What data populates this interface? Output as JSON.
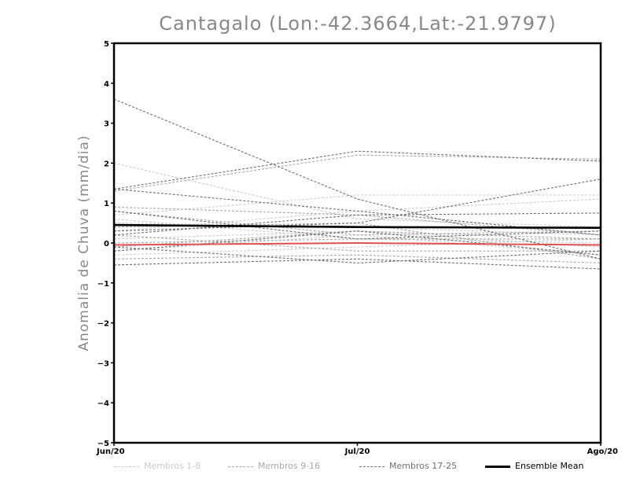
{
  "chart_data": {
    "type": "line",
    "title": "Cantagalo (Lon:-42.3664,Lat:-21.9797)",
    "xlabel": "",
    "ylabel": "Anomalia de Chuva (mm/dia)",
    "categories": [
      "Jun/20",
      "Jul/20",
      "Ago/20"
    ],
    "ylim": [
      -5,
      5
    ],
    "yticks": [
      -5,
      -4,
      -3,
      -2,
      -1,
      0,
      1,
      2,
      3,
      4,
      5
    ],
    "grid": false,
    "legend_position": "bottom",
    "legend": [
      {
        "label": "Membros 1-8",
        "color": "#cccccc",
        "style": "dashed"
      },
      {
        "label": "Membros 9-16",
        "color": "#a8a8a8",
        "style": "dashed"
      },
      {
        "label": "Membros 17-25",
        "color": "#707070",
        "style": "dashed"
      },
      {
        "label": "Ensemble Mean",
        "color": "#000000",
        "style": "solid"
      }
    ],
    "series": [
      {
        "group": 1,
        "values": [
          2.0,
          0.6,
          0.4
        ]
      },
      {
        "group": 1,
        "values": [
          0.7,
          1.2,
          1.2
        ]
      },
      {
        "group": 1,
        "values": [
          0.3,
          0.8,
          1.1
        ]
      },
      {
        "group": 1,
        "values": [
          0.1,
          0.3,
          -0.1
        ]
      },
      {
        "group": 1,
        "values": [
          -0.3,
          -0.1,
          0.1
        ]
      },
      {
        "group": 1,
        "values": [
          0.5,
          0.4,
          0.2
        ]
      },
      {
        "group": 1,
        "values": [
          -0.2,
          0.2,
          -0.3
        ]
      },
      {
        "group": 1,
        "values": [
          0.6,
          0.1,
          0.0
        ]
      },
      {
        "group": 2,
        "values": [
          1.3,
          2.2,
          2.1
        ]
      },
      {
        "group": 2,
        "values": [
          0.9,
          0.7,
          0.2
        ]
      },
      {
        "group": 2,
        "values": [
          0.4,
          0.5,
          -0.4
        ]
      },
      {
        "group": 2,
        "values": [
          -0.1,
          0.3,
          0.1
        ]
      },
      {
        "group": 2,
        "values": [
          0.2,
          -0.2,
          -0.2
        ]
      },
      {
        "group": 2,
        "values": [
          -0.4,
          -0.3,
          -0.5
        ]
      },
      {
        "group": 2,
        "values": [
          0.8,
          0.2,
          0.3
        ]
      },
      {
        "group": 2,
        "values": [
          0.0,
          0.1,
          0.1
        ]
      },
      {
        "group": 3,
        "values": [
          3.6,
          1.1,
          -0.4
        ]
      },
      {
        "group": 3,
        "values": [
          1.35,
          2.3,
          2.05
        ]
      },
      {
        "group": 3,
        "values": [
          1.35,
          0.8,
          0.2
        ]
      },
      {
        "group": 3,
        "values": [
          0.8,
          0.1,
          0.3
        ]
      },
      {
        "group": 3,
        "values": [
          0.3,
          0.5,
          1.6
        ]
      },
      {
        "group": 3,
        "values": [
          -0.55,
          -0.4,
          -0.65
        ]
      },
      {
        "group": 3,
        "values": [
          -0.1,
          -0.5,
          -0.2
        ]
      },
      {
        "group": 3,
        "values": [
          0.2,
          0.7,
          0.75
        ]
      },
      {
        "group": 3,
        "values": [
          -0.2,
          0.3,
          -0.3
        ]
      }
    ],
    "mean": {
      "name": "Ensemble Mean",
      "values": [
        0.45,
        0.4,
        0.38
      ]
    },
    "reference": {
      "values": [
        -0.05,
        0.0,
        -0.05
      ],
      "color": "#e05050"
    }
  }
}
